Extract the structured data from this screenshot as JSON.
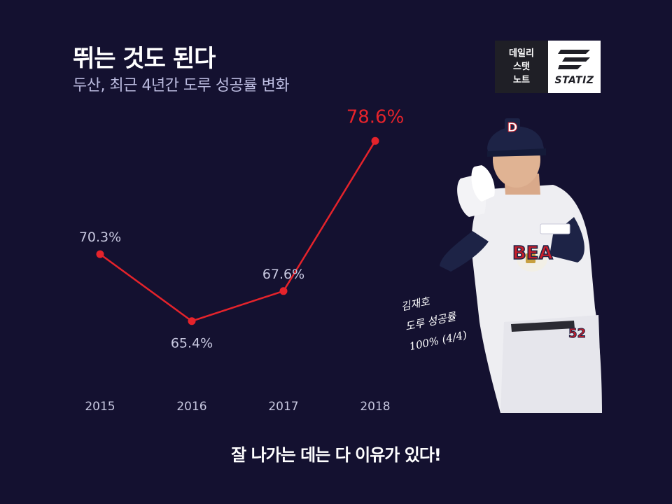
{
  "header": {
    "title": "뛰는 것도 된다",
    "subtitle": "두산, 최근 4년간 도루 성공률 변화"
  },
  "logo": {
    "left_lines": [
      "데일리",
      "스탯",
      "노트"
    ],
    "brand": "STATIZ"
  },
  "annotation": {
    "lines": [
      "김재호",
      "도루 성공률",
      "100% (4/4)"
    ]
  },
  "footer": {
    "text": "잘 나가는 데는 다 이유가 있다!"
  },
  "colors": {
    "background": "#141130",
    "line": "#e5232b",
    "label": "#c8c8e0",
    "highlight": "#e5232b"
  },
  "chart_data": {
    "type": "line",
    "categories": [
      "2015",
      "2016",
      "2017",
      "2018"
    ],
    "values": [
      70.3,
      65.4,
      67.6,
      78.6
    ],
    "labels": [
      "70.3%",
      "65.4%",
      "67.6%",
      "78.6%"
    ],
    "highlight_index": 3,
    "ylim": [
      60,
      80
    ],
    "grid": false,
    "legend": "none"
  }
}
